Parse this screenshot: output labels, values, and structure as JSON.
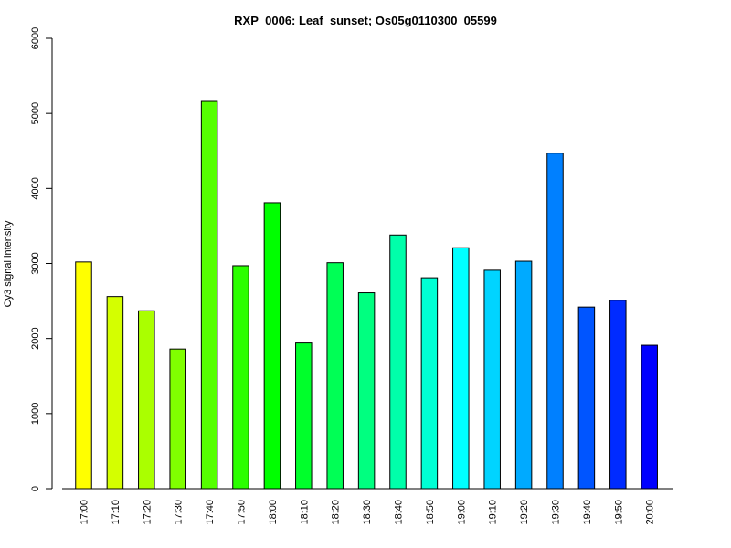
{
  "chart_data": {
    "type": "bar",
    "title": "RXP_0006: Leaf_sunset; Os05g0110300_05599",
    "xlabel": "",
    "ylabel": "Cy3 signal intensity",
    "ylim": [
      0,
      6000
    ],
    "yticks": [
      0,
      1000,
      2000,
      3000,
      4000,
      5000,
      6000
    ],
    "grid": false,
    "categories": [
      "17:00",
      "17:10",
      "17:20",
      "17:30",
      "17:40",
      "17:50",
      "18:00",
      "18:10",
      "18:20",
      "18:30",
      "18:40",
      "18:50",
      "19:00",
      "19:10",
      "19:20",
      "19:30",
      "19:40",
      "19:50",
      "20:00"
    ],
    "values": [
      3020,
      2560,
      2370,
      1860,
      5160,
      2970,
      3810,
      1940,
      3010,
      2610,
      3380,
      2810,
      3210,
      2910,
      3030,
      4470,
      2420,
      2510,
      1910
    ],
    "colors": [
      "#FFFF00",
      "#D4FF00",
      "#AAFF00",
      "#80FF00",
      "#55FF00",
      "#2BFF00",
      "#00FF00",
      "#00FF2B",
      "#00FF55",
      "#00FF80",
      "#00FFAA",
      "#00FFD4",
      "#00FFFF",
      "#00D4FF",
      "#00AAFF",
      "#0080FF",
      "#0055FF",
      "#002BFF",
      "#0000FF"
    ]
  }
}
